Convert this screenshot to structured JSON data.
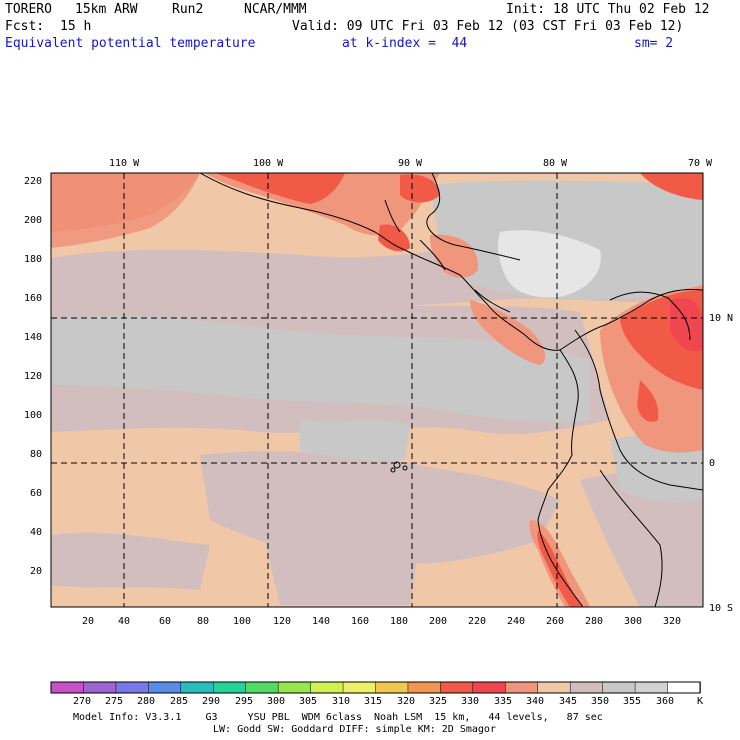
{
  "header": {
    "model": "TORERO",
    "resolution": "15km ARW",
    "run": "Run2",
    "center": "NCAR/MMM",
    "init": "Init: 18 UTC Thu 02 Feb 12",
    "fcst_label": "Fcst:",
    "fcst_value": "15 h",
    "valid": "Valid: 09 UTC Fri 03 Feb 12 (03 CST Fri 03 Feb 12)",
    "field": "Equivalent potential temperature",
    "level": "at k-index =  44",
    "smoothing": "sm= 2"
  },
  "map": {
    "lon_labels": [
      "110 W",
      "100 W",
      "90 W",
      "80 W",
      "70 W"
    ],
    "lat_labels": [
      "10 N",
      "0",
      "10 S"
    ],
    "y_ticks": [
      "220",
      "200",
      "180",
      "160",
      "140",
      "120",
      "100",
      "80",
      "60",
      "40",
      "20"
    ],
    "x_ticks": [
      "20",
      "40",
      "60",
      "80",
      "100",
      "120",
      "140",
      "160",
      "180",
      "200",
      "220",
      "240",
      "260",
      "280",
      "300",
      "320"
    ]
  },
  "colorbar": {
    "labels": [
      "270",
      "275",
      "280",
      "285",
      "290",
      "295",
      "300",
      "305",
      "310",
      "315",
      "320",
      "325",
      "330",
      "335",
      "340",
      "345",
      "350",
      "355",
      "360"
    ],
    "unit": "K",
    "colors": [
      "#c850c8",
      "#a064d2",
      "#7878e6",
      "#5a8ce6",
      "#28bebe",
      "#28d296",
      "#50dc64",
      "#96e650",
      "#d2f050",
      "#f0f064",
      "#f0c850",
      "#f09650",
      "#f05a46",
      "#f04650",
      "#f0967c",
      "#f0c8a8",
      "#d2bebe",
      "#c8c8c8",
      "#d2d2d2",
      "#ffffff"
    ]
  },
  "footer": {
    "line1": "Model Info: V3.3.1    G3     YSU PBL  WDM 6class  Noah LSM  15 km,   44 levels,   87 sec",
    "line2": "LW: Godd SW: Goddard DIFF: simple KM: 2D Smagor"
  }
}
